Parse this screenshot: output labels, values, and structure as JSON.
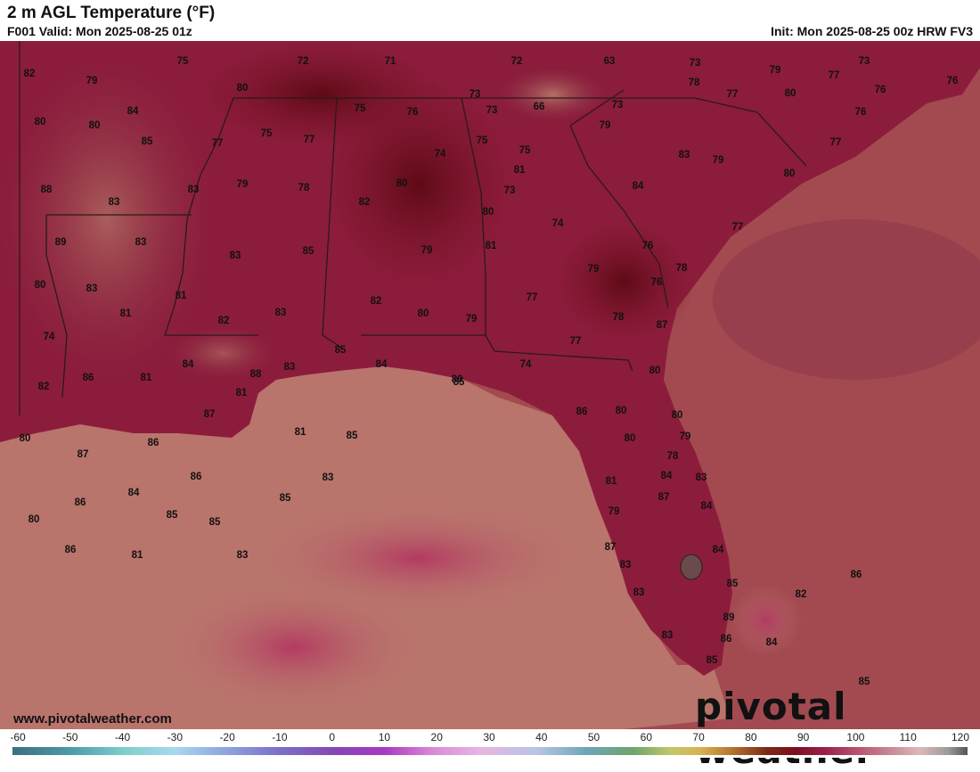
{
  "header": {
    "title": "2 m AGL Temperature (°F)",
    "valid": "F001 Valid: Mon 2025-08-25 01z",
    "init": "Init: Mon 2025-08-25 00z HRW FV3"
  },
  "branding": {
    "website": "www.pivotalweather.com",
    "logo": "pivotal weather"
  },
  "colorbar": {
    "ticks": [
      "-60",
      "-50",
      "-40",
      "-30",
      "-20",
      "-10",
      "0",
      "10",
      "20",
      "30",
      "40",
      "50",
      "60",
      "70",
      "80",
      "90",
      "100",
      "110",
      "120"
    ]
  },
  "colors": {
    "land_warm": "#8c1c3c",
    "land_cool": "#6e0f1e",
    "gulf_water": "#b9746c",
    "atlantic_water": "#a0484c"
  },
  "station_values": [
    "82",
    "79",
    "75",
    "72",
    "71",
    "72",
    "63",
    "73",
    "79",
    "73",
    "77",
    "76",
    "76",
    "80",
    "84",
    "80",
    "80",
    "75",
    "76",
    "73",
    "73",
    "66",
    "73",
    "78",
    "77",
    "80",
    "76",
    "85",
    "77",
    "75",
    "77",
    "74",
    "75",
    "75",
    "79",
    "83",
    "79",
    "77",
    "88",
    "83",
    "83",
    "79",
    "78",
    "80",
    "82",
    "81",
    "73",
    "84",
    "80",
    "83",
    "89",
    "83",
    "85",
    "79",
    "80",
    "74",
    "81",
    "77",
    "80",
    "83",
    "81",
    "83",
    "82",
    "80",
    "79",
    "77",
    "79",
    "76",
    "78",
    "76",
    "74",
    "81",
    "82",
    "85",
    "84",
    "84",
    "88",
    "83",
    "87",
    "77",
    "78",
    "74",
    "80",
    "82",
    "86",
    "81",
    "81",
    "87",
    "81",
    "85",
    "85",
    "86",
    "80",
    "80",
    "80",
    "78",
    "79",
    "80",
    "86",
    "87",
    "86",
    "84",
    "83",
    "81",
    "80",
    "86",
    "85",
    "87",
    "79",
    "84",
    "80",
    "86",
    "85",
    "83",
    "83",
    "84",
    "81",
    "85",
    "85",
    "87",
    "84",
    "83",
    "82",
    "84",
    "83",
    "85",
    "86",
    "89",
    "83",
    "86",
    "85",
    "84"
  ]
}
